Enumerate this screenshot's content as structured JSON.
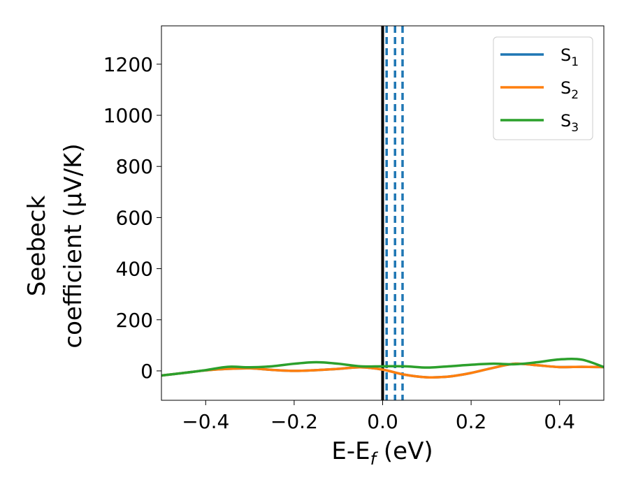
{
  "chart_data": {
    "type": "line",
    "xlabel_main": "E-E",
    "xlabel_sub": "f",
    "xlabel_unit": " (eV)",
    "ylabel_line1": "Seebeck",
    "ylabel_line2": "coefficient  (μV/K)",
    "xlim": [
      -0.5,
      0.5
    ],
    "ylim": [
      -115,
      1350
    ],
    "xticks": [
      -0.4,
      -0.2,
      0.0,
      0.2,
      0.4
    ],
    "xtick_labels": [
      "−0.4",
      "−0.2",
      "0.0",
      "0.2",
      "0.4"
    ],
    "yticks": [
      0,
      200,
      400,
      600,
      800,
      1000,
      1200
    ],
    "ytick_labels": [
      "0",
      "200",
      "400",
      "600",
      "800",
      "1000",
      "1200"
    ],
    "legend_position": "top-right",
    "vertical_lines": [
      {
        "x": 0.0,
        "style": "solid",
        "color": "#000000"
      },
      {
        "x": 0.009,
        "style": "dashed",
        "color": "#1f77b4"
      },
      {
        "x": 0.028,
        "style": "dashed",
        "color": "#1f77b4"
      },
      {
        "x": 0.045,
        "style": "dashed",
        "color": "#1f77b4"
      }
    ],
    "series": [
      {
        "name": "S",
        "sub": "1",
        "color": "#1f77b4",
        "x": [
          -0.5,
          -0.45,
          -0.4,
          -0.35,
          -0.3,
          -0.25,
          -0.2,
          -0.15,
          -0.1,
          -0.05,
          0.0,
          0.05,
          0.1,
          0.15,
          0.2,
          0.25,
          0.3,
          0.35,
          0.4,
          0.45,
          0.5
        ],
        "y": [
          -18,
          -8,
          2,
          8,
          10,
          4,
          0,
          3,
          8,
          14,
          5,
          -15,
          -25,
          -22,
          -8,
          12,
          28,
          22,
          15,
          16,
          15
        ]
      },
      {
        "name": "S",
        "sub": "2",
        "color": "#ff7f0e",
        "x": [
          -0.5,
          -0.45,
          -0.4,
          -0.35,
          -0.3,
          -0.25,
          -0.2,
          -0.15,
          -0.1,
          -0.05,
          0.0,
          0.05,
          0.1,
          0.15,
          0.2,
          0.25,
          0.3,
          0.35,
          0.4,
          0.45,
          0.5
        ],
        "y": [
          -18,
          -8,
          2,
          8,
          10,
          4,
          0,
          3,
          8,
          14,
          5,
          -15,
          -25,
          -22,
          -8,
          12,
          28,
          22,
          15,
          16,
          15
        ]
      },
      {
        "name": "S",
        "sub": "3",
        "color": "#2ca02c",
        "x": [
          -0.5,
          -0.45,
          -0.4,
          -0.35,
          -0.3,
          -0.25,
          -0.2,
          -0.15,
          -0.1,
          -0.05,
          0.0,
          0.05,
          0.1,
          0.15,
          0.2,
          0.25,
          0.3,
          0.35,
          0.4,
          0.45,
          0.5
        ],
        "y": [
          -18,
          -8,
          3,
          16,
          14,
          18,
          28,
          34,
          28,
          18,
          18,
          18,
          13,
          18,
          24,
          28,
          26,
          34,
          45,
          44,
          15
        ]
      }
    ]
  }
}
